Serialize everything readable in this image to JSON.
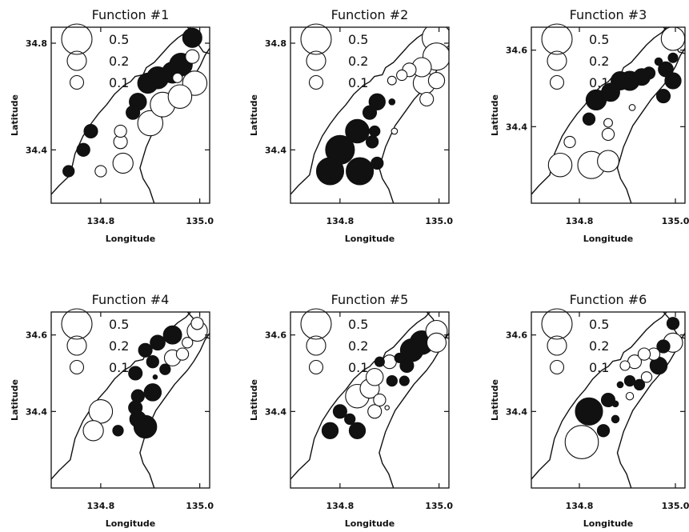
{
  "chart_data": [
    {
      "type": "scatter",
      "title": "Function #1",
      "xlabel": "Longitude",
      "ylabel": "Latitude",
      "xlim": [
        134.7,
        135.02
      ],
      "ylim": [
        34.2,
        34.86
      ],
      "xticks": [
        134.8,
        135.0
      ],
      "yticks": [
        34.4,
        34.8
      ],
      "xtick_labels": [
        "134.8",
        "135.0"
      ],
      "ytick_labels": [
        "34.4",
        "34.8"
      ],
      "legend": [
        {
          "label": "0.5",
          "value": 0.5
        },
        {
          "label": "0.2",
          "value": 0.2
        },
        {
          "label": "0.1",
          "value": 0.1
        }
      ],
      "points": [
        {
          "lon": 134.985,
          "lat": 34.82,
          "w": 0.2,
          "sign": "positive"
        },
        {
          "lon": 134.985,
          "lat": 34.75,
          "w": 0.1,
          "sign": "negative"
        },
        {
          "lon": 134.962,
          "lat": 34.72,
          "w": 0.28,
          "sign": "positive"
        },
        {
          "lon": 134.945,
          "lat": 34.69,
          "w": 0.24,
          "sign": "positive"
        },
        {
          "lon": 134.915,
          "lat": 34.67,
          "w": 0.26,
          "sign": "positive"
        },
        {
          "lon": 134.895,
          "lat": 34.65,
          "w": 0.22,
          "sign": "positive"
        },
        {
          "lon": 134.955,
          "lat": 34.67,
          "w": 0.05,
          "sign": "negative"
        },
        {
          "lon": 134.99,
          "lat": 34.65,
          "w": 0.32,
          "sign": "negative"
        },
        {
          "lon": 134.96,
          "lat": 34.6,
          "w": 0.3,
          "sign": "negative"
        },
        {
          "lon": 134.925,
          "lat": 34.57,
          "w": 0.33,
          "sign": "negative"
        },
        {
          "lon": 134.875,
          "lat": 34.58,
          "w": 0.16,
          "sign": "positive"
        },
        {
          "lon": 134.865,
          "lat": 34.54,
          "w": 0.1,
          "sign": "positive"
        },
        {
          "lon": 134.9,
          "lat": 34.5,
          "w": 0.34,
          "sign": "negative"
        },
        {
          "lon": 134.84,
          "lat": 34.47,
          "w": 0.08,
          "sign": "negative"
        },
        {
          "lon": 134.78,
          "lat": 34.47,
          "w": 0.1,
          "sign": "positive"
        },
        {
          "lon": 134.84,
          "lat": 34.43,
          "w": 0.1,
          "sign": "negative"
        },
        {
          "lon": 134.765,
          "lat": 34.4,
          "w": 0.09,
          "sign": "positive"
        },
        {
          "lon": 134.845,
          "lat": 34.35,
          "w": 0.22,
          "sign": "negative"
        },
        {
          "lon": 134.8,
          "lat": 34.32,
          "w": 0.07,
          "sign": "negative"
        },
        {
          "lon": 134.735,
          "lat": 34.32,
          "w": 0.07,
          "sign": "positive"
        }
      ]
    },
    {
      "type": "scatter",
      "title": "Function #2",
      "xlabel": "Longitude",
      "ylabel": "Latitude",
      "xlim": [
        134.7,
        135.02
      ],
      "ylim": [
        34.2,
        34.86
      ],
      "xticks": [
        134.8,
        135.0
      ],
      "yticks": [
        34.4,
        34.8
      ],
      "xtick_labels": [
        "134.8",
        "135.0"
      ],
      "ytick_labels": [
        "34.4",
        "34.8"
      ],
      "legend": [
        {
          "label": "0.5",
          "value": 0.5
        },
        {
          "label": "0.2",
          "value": 0.2
        },
        {
          "label": "0.1",
          "value": 0.1
        }
      ],
      "points": [
        {
          "lon": 134.995,
          "lat": 34.82,
          "w": 0.45,
          "sign": "negative"
        },
        {
          "lon": 134.995,
          "lat": 34.75,
          "w": 0.4,
          "sign": "negative"
        },
        {
          "lon": 134.965,
          "lat": 34.71,
          "w": 0.2,
          "sign": "negative"
        },
        {
          "lon": 134.94,
          "lat": 34.7,
          "w": 0.1,
          "sign": "negative"
        },
        {
          "lon": 134.925,
          "lat": 34.68,
          "w": 0.06,
          "sign": "negative"
        },
        {
          "lon": 134.905,
          "lat": 34.66,
          "w": 0.04,
          "sign": "negative"
        },
        {
          "lon": 134.97,
          "lat": 34.65,
          "w": 0.26,
          "sign": "negative"
        },
        {
          "lon": 134.995,
          "lat": 34.66,
          "w": 0.14,
          "sign": "negative"
        },
        {
          "lon": 134.975,
          "lat": 34.59,
          "w": 0.1,
          "sign": "negative"
        },
        {
          "lon": 134.875,
          "lat": 34.58,
          "w": 0.14,
          "sign": "positive"
        },
        {
          "lon": 134.905,
          "lat": 34.58,
          "w": 0.02,
          "sign": "positive"
        },
        {
          "lon": 134.86,
          "lat": 34.54,
          "w": 0.1,
          "sign": "positive"
        },
        {
          "lon": 134.835,
          "lat": 34.47,
          "w": 0.3,
          "sign": "positive"
        },
        {
          "lon": 134.87,
          "lat": 34.47,
          "w": 0.06,
          "sign": "positive"
        },
        {
          "lon": 134.91,
          "lat": 34.47,
          "w": 0.02,
          "sign": "negative"
        },
        {
          "lon": 134.865,
          "lat": 34.43,
          "w": 0.08,
          "sign": "positive"
        },
        {
          "lon": 134.8,
          "lat": 34.4,
          "w": 0.45,
          "sign": "positive"
        },
        {
          "lon": 134.875,
          "lat": 34.35,
          "w": 0.08,
          "sign": "positive"
        },
        {
          "lon": 134.84,
          "lat": 34.32,
          "w": 0.4,
          "sign": "positive"
        },
        {
          "lon": 134.78,
          "lat": 34.32,
          "w": 0.4,
          "sign": "positive"
        }
      ]
    },
    {
      "type": "scatter",
      "title": "Function #3",
      "xlabel": "Longitude",
      "ylabel": "Latitude",
      "xlim": [
        134.7,
        135.02
      ],
      "ylim": [
        34.2,
        34.66
      ],
      "xticks": [
        134.8,
        135.0
      ],
      "yticks": [
        34.4,
        34.6
      ],
      "xtick_labels": [
        "134.8",
        "135.0"
      ],
      "ytick_labels": [
        "34.4",
        "34.6"
      ],
      "legend": [
        {
          "label": "0.5",
          "value": 0.5
        },
        {
          "label": "0.2",
          "value": 0.2
        },
        {
          "label": "0.1",
          "value": 0.1
        }
      ],
      "points": [
        {
          "lon": 134.995,
          "lat": 34.63,
          "w": 0.3,
          "sign": "negative"
        },
        {
          "lon": 134.995,
          "lat": 34.58,
          "w": 0.05,
          "sign": "positive"
        },
        {
          "lon": 134.965,
          "lat": 34.57,
          "w": 0.03,
          "sign": "positive"
        },
        {
          "lon": 134.98,
          "lat": 34.55,
          "w": 0.12,
          "sign": "positive"
        },
        {
          "lon": 134.945,
          "lat": 34.54,
          "w": 0.08,
          "sign": "positive"
        },
        {
          "lon": 134.93,
          "lat": 34.53,
          "w": 0.15,
          "sign": "positive"
        },
        {
          "lon": 134.905,
          "lat": 34.52,
          "w": 0.2,
          "sign": "positive"
        },
        {
          "lon": 134.885,
          "lat": 34.52,
          "w": 0.18,
          "sign": "positive"
        },
        {
          "lon": 134.995,
          "lat": 34.52,
          "w": 0.14,
          "sign": "positive"
        },
        {
          "lon": 134.865,
          "lat": 34.49,
          "w": 0.18,
          "sign": "positive"
        },
        {
          "lon": 134.975,
          "lat": 34.48,
          "w": 0.1,
          "sign": "positive"
        },
        {
          "lon": 134.835,
          "lat": 34.47,
          "w": 0.22,
          "sign": "positive"
        },
        {
          "lon": 134.91,
          "lat": 34.45,
          "w": 0.02,
          "sign": "negative"
        },
        {
          "lon": 134.82,
          "lat": 34.42,
          "w": 0.08,
          "sign": "positive"
        },
        {
          "lon": 134.86,
          "lat": 34.41,
          "w": 0.04,
          "sign": "negative"
        },
        {
          "lon": 134.86,
          "lat": 34.38,
          "w": 0.08,
          "sign": "negative"
        },
        {
          "lon": 134.78,
          "lat": 34.36,
          "w": 0.07,
          "sign": "negative"
        },
        {
          "lon": 134.86,
          "lat": 34.31,
          "w": 0.25,
          "sign": "negative"
        },
        {
          "lon": 134.825,
          "lat": 34.3,
          "w": 0.4,
          "sign": "negative"
        },
        {
          "lon": 134.76,
          "lat": 34.3,
          "w": 0.3,
          "sign": "negative"
        }
      ]
    },
    {
      "type": "scatter",
      "title": "Function #4",
      "xlabel": "Longitude",
      "ylabel": "Latitude",
      "xlim": [
        134.7,
        135.02
      ],
      "ylim": [
        34.2,
        34.66
      ],
      "xticks": [
        134.8,
        135.0
      ],
      "yticks": [
        34.4,
        34.6
      ],
      "xtick_labels": [
        "134.8",
        "135.0"
      ],
      "ytick_labels": [
        "34.4",
        "34.6"
      ],
      "legend": [
        {
          "label": "0.5",
          "value": 0.5
        },
        {
          "label": "0.2",
          "value": 0.2
        },
        {
          "label": "0.1",
          "value": 0.1
        }
      ],
      "points": [
        {
          "lon": 134.995,
          "lat": 34.63,
          "w": 0.08,
          "sign": "negative"
        },
        {
          "lon": 134.995,
          "lat": 34.61,
          "w": 0.22,
          "sign": "negative"
        },
        {
          "lon": 134.975,
          "lat": 34.58,
          "w": 0.06,
          "sign": "negative"
        },
        {
          "lon": 134.945,
          "lat": 34.6,
          "w": 0.18,
          "sign": "positive"
        },
        {
          "lon": 134.915,
          "lat": 34.58,
          "w": 0.12,
          "sign": "positive"
        },
        {
          "lon": 134.89,
          "lat": 34.56,
          "w": 0.1,
          "sign": "positive"
        },
        {
          "lon": 134.965,
          "lat": 34.55,
          "w": 0.08,
          "sign": "negative"
        },
        {
          "lon": 134.945,
          "lat": 34.54,
          "w": 0.14,
          "sign": "negative"
        },
        {
          "lon": 134.905,
          "lat": 34.53,
          "w": 0.08,
          "sign": "positive"
        },
        {
          "lon": 134.93,
          "lat": 34.51,
          "w": 0.06,
          "sign": "positive"
        },
        {
          "lon": 134.91,
          "lat": 34.49,
          "w": 0.01,
          "sign": "positive"
        },
        {
          "lon": 134.87,
          "lat": 34.5,
          "w": 0.1,
          "sign": "positive"
        },
        {
          "lon": 134.905,
          "lat": 34.45,
          "w": 0.16,
          "sign": "positive"
        },
        {
          "lon": 134.875,
          "lat": 34.44,
          "w": 0.09,
          "sign": "positive"
        },
        {
          "lon": 134.87,
          "lat": 34.41,
          "w": 0.1,
          "sign": "positive"
        },
        {
          "lon": 134.875,
          "lat": 34.38,
          "w": 0.14,
          "sign": "positive"
        },
        {
          "lon": 134.89,
          "lat": 34.36,
          "w": 0.28,
          "sign": "positive"
        },
        {
          "lon": 134.8,
          "lat": 34.4,
          "w": 0.3,
          "sign": "negative"
        },
        {
          "lon": 134.835,
          "lat": 34.35,
          "w": 0.06,
          "sign": "positive"
        },
        {
          "lon": 134.785,
          "lat": 34.35,
          "w": 0.22,
          "sign": "negative"
        }
      ]
    },
    {
      "type": "scatter",
      "title": "Function #5",
      "xlabel": "Longitude",
      "ylabel": "Latitude",
      "xlim": [
        134.7,
        135.02
      ],
      "ylim": [
        34.2,
        34.66
      ],
      "xticks": [
        134.8,
        135.0
      ],
      "yticks": [
        34.4,
        34.6
      ],
      "xtick_labels": [
        "134.8",
        "135.0"
      ],
      "ytick_labels": [
        "34.4",
        "34.6"
      ],
      "legend": [
        {
          "label": "0.5",
          "value": 0.5
        },
        {
          "label": "0.2",
          "value": 0.2
        },
        {
          "label": "0.1",
          "value": 0.1
        }
      ],
      "points": [
        {
          "lon": 134.995,
          "lat": 34.61,
          "w": 0.25,
          "sign": "negative"
        },
        {
          "lon": 134.995,
          "lat": 34.58,
          "w": 0.2,
          "sign": "negative"
        },
        {
          "lon": 134.965,
          "lat": 34.58,
          "w": 0.3,
          "sign": "positive"
        },
        {
          "lon": 134.945,
          "lat": 34.56,
          "w": 0.28,
          "sign": "positive"
        },
        {
          "lon": 134.92,
          "lat": 34.54,
          "w": 0.05,
          "sign": "positive"
        },
        {
          "lon": 134.9,
          "lat": 34.53,
          "w": 0.1,
          "sign": "negative"
        },
        {
          "lon": 134.88,
          "lat": 34.53,
          "w": 0.05,
          "sign": "positive"
        },
        {
          "lon": 134.935,
          "lat": 34.52,
          "w": 0.1,
          "sign": "positive"
        },
        {
          "lon": 134.87,
          "lat": 34.49,
          "w": 0.16,
          "sign": "negative"
        },
        {
          "lon": 134.905,
          "lat": 34.48,
          "w": 0.06,
          "sign": "positive"
        },
        {
          "lon": 134.93,
          "lat": 34.48,
          "w": 0.05,
          "sign": "positive"
        },
        {
          "lon": 134.86,
          "lat": 34.46,
          "w": 0.2,
          "sign": "negative"
        },
        {
          "lon": 134.835,
          "lat": 34.44,
          "w": 0.3,
          "sign": "negative"
        },
        {
          "lon": 134.88,
          "lat": 34.43,
          "w": 0.08,
          "sign": "negative"
        },
        {
          "lon": 134.895,
          "lat": 34.41,
          "w": 0.01,
          "sign": "negative"
        },
        {
          "lon": 134.87,
          "lat": 34.4,
          "w": 0.1,
          "sign": "negative"
        },
        {
          "lon": 134.8,
          "lat": 34.4,
          "w": 0.1,
          "sign": "positive"
        },
        {
          "lon": 134.82,
          "lat": 34.38,
          "w": 0.06,
          "sign": "positive"
        },
        {
          "lon": 134.835,
          "lat": 34.35,
          "w": 0.14,
          "sign": "positive"
        },
        {
          "lon": 134.78,
          "lat": 34.35,
          "w": 0.14,
          "sign": "positive"
        }
      ]
    },
    {
      "type": "scatter",
      "title": "Function #6",
      "xlabel": "Longitude",
      "ylabel": "Latitude",
      "xlim": [
        134.7,
        135.02
      ],
      "ylim": [
        34.2,
        34.66
      ],
      "xticks": [
        134.8,
        135.0
      ],
      "yticks": [
        34.4,
        34.6
      ],
      "xtick_labels": [
        "134.8",
        "135.0"
      ],
      "ytick_labels": [
        "34.4",
        "34.6"
      ],
      "legend": [
        {
          "label": "0.5",
          "value": 0.5
        },
        {
          "label": "0.2",
          "value": 0.2
        },
        {
          "label": "0.1",
          "value": 0.1
        }
      ],
      "points": [
        {
          "lon": 134.995,
          "lat": 34.63,
          "w": 0.08,
          "sign": "positive"
        },
        {
          "lon": 134.995,
          "lat": 34.58,
          "w": 0.2,
          "sign": "negative"
        },
        {
          "lon": 134.975,
          "lat": 34.57,
          "w": 0.09,
          "sign": "positive"
        },
        {
          "lon": 134.955,
          "lat": 34.55,
          "w": 0.08,
          "sign": "negative"
        },
        {
          "lon": 134.935,
          "lat": 34.55,
          "w": 0.08,
          "sign": "negative"
        },
        {
          "lon": 134.915,
          "lat": 34.53,
          "w": 0.1,
          "sign": "negative"
        },
        {
          "lon": 134.895,
          "lat": 34.52,
          "w": 0.05,
          "sign": "negative"
        },
        {
          "lon": 134.965,
          "lat": 34.52,
          "w": 0.16,
          "sign": "positive"
        },
        {
          "lon": 134.94,
          "lat": 34.49,
          "w": 0.06,
          "sign": "negative"
        },
        {
          "lon": 134.905,
          "lat": 34.48,
          "w": 0.06,
          "sign": "positive"
        },
        {
          "lon": 134.925,
          "lat": 34.47,
          "w": 0.06,
          "sign": "positive"
        },
        {
          "lon": 134.885,
          "lat": 34.47,
          "w": 0.02,
          "sign": "positive"
        },
        {
          "lon": 134.905,
          "lat": 34.44,
          "w": 0.03,
          "sign": "negative"
        },
        {
          "lon": 134.86,
          "lat": 34.43,
          "w": 0.1,
          "sign": "positive"
        },
        {
          "lon": 134.875,
          "lat": 34.42,
          "w": 0.02,
          "sign": "positive"
        },
        {
          "lon": 134.875,
          "lat": 34.38,
          "w": 0.03,
          "sign": "positive"
        },
        {
          "lon": 134.82,
          "lat": 34.4,
          "w": 0.4,
          "sign": "positive"
        },
        {
          "lon": 134.85,
          "lat": 34.35,
          "w": 0.08,
          "sign": "positive"
        },
        {
          "lon": 134.805,
          "lat": 34.32,
          "w": 0.6,
          "sign": "negative"
        }
      ]
    }
  ]
}
